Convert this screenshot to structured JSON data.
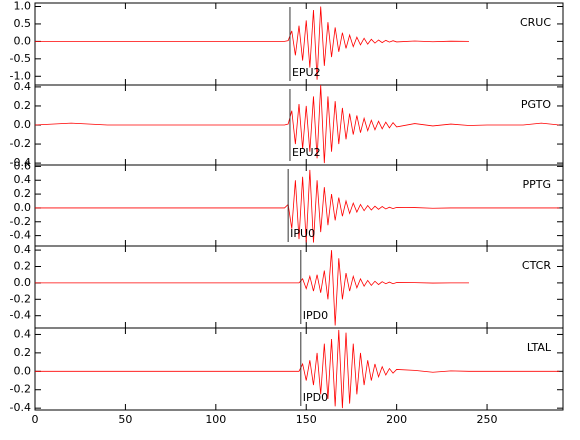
{
  "chart_data": [
    {
      "type": "line",
      "station": "CRUC",
      "phase": {
        "label": "EPU2",
        "x": 141
      },
      "color": "#ff0000",
      "xlim": [
        0,
        292
      ],
      "xticks": [
        0,
        50,
        100,
        150,
        200,
        250
      ],
      "ylim": [
        -1.25,
        1.1
      ],
      "yticks": [
        {
          "value": -1,
          "label": "-1.0"
        },
        -0.5,
        {
          "value": 0,
          "label": "0.0"
        },
        0.5,
        {
          "value": 1,
          "label": "1.0"
        }
      ],
      "x": [
        0,
        20,
        40,
        60,
        80,
        100,
        120,
        130,
        132,
        134,
        136,
        138,
        140,
        142,
        144,
        146,
        148,
        150,
        152,
        154,
        156,
        158,
        160,
        162,
        164,
        166,
        168,
        170,
        172,
        174,
        176,
        178,
        180,
        182,
        184,
        186,
        188,
        190,
        192,
        194,
        196,
        198,
        200,
        210,
        220,
        230,
        240,
        250,
        260,
        270,
        280,
        290
      ],
      "values": [
        0,
        0,
        0,
        0,
        0,
        0,
        0,
        0,
        0,
        0,
        0,
        0,
        0.02,
        0.3,
        -0.4,
        0.45,
        -0.55,
        0.6,
        -0.75,
        0.9,
        -1.1,
        1.0,
        -0.7,
        0.55,
        -0.45,
        0.4,
        -0.3,
        0.25,
        -0.2,
        0.18,
        -0.15,
        0.12,
        -0.1,
        0.09,
        -0.08,
        0.06,
        -0.05,
        0.04,
        -0.035,
        0.03,
        -0.02,
        0.02,
        -0.015,
        0.01,
        -0.01,
        0.005,
        0,
        null,
        null,
        null,
        null,
        null
      ]
    },
    {
      "type": "line",
      "station": "PGTO",
      "phase": {
        "label": "EPU2",
        "x": 141
      },
      "color": "#ff0000",
      "xlim": [
        0,
        292
      ],
      "xticks": [
        0,
        50,
        100,
        150,
        200,
        250
      ],
      "ylim": [
        -0.42,
        0.42
      ],
      "yticks": [
        -0.4,
        -0.2,
        {
          "value": 0,
          "label": "0.0"
        },
        0.2,
        0.4
      ],
      "x": [
        0,
        20,
        40,
        60,
        80,
        100,
        120,
        130,
        132,
        134,
        136,
        138,
        140,
        142,
        144,
        146,
        148,
        150,
        152,
        154,
        156,
        158,
        160,
        162,
        164,
        166,
        168,
        170,
        172,
        174,
        176,
        178,
        180,
        182,
        184,
        186,
        188,
        190,
        192,
        194,
        196,
        198,
        200,
        210,
        220,
        230,
        240,
        250,
        260,
        270,
        280,
        290
      ],
      "values": [
        0,
        0.02,
        0,
        0,
        0,
        0,
        0,
        0,
        0,
        0,
        0,
        0,
        0.01,
        0.15,
        -0.2,
        0.22,
        -0.25,
        0.2,
        -0.28,
        0.3,
        -0.35,
        0.42,
        -0.4,
        0.3,
        -0.28,
        0.25,
        -0.2,
        0.18,
        -0.15,
        0.12,
        -0.1,
        0.1,
        -0.08,
        0.07,
        -0.06,
        0.05,
        -0.05,
        0.04,
        -0.04,
        0.03,
        -0.03,
        0.025,
        -0.02,
        0.015,
        -0.01,
        0.01,
        -0.005,
        0,
        0,
        0,
        0.02,
        0
      ]
    },
    {
      "type": "line",
      "station": "PPTG",
      "phase": {
        "label": "IPU0",
        "x": 140
      },
      "color": "#ff0000",
      "xlim": [
        0,
        292
      ],
      "xticks": [
        0,
        50,
        100,
        150,
        200,
        250
      ],
      "ylim": [
        -0.55,
        0.62
      ],
      "yticks": [
        -0.4,
        -0.2,
        {
          "value": 0,
          "label": "0.0"
        },
        0.2,
        0.4,
        0.6
      ],
      "x": [
        0,
        20,
        40,
        60,
        80,
        100,
        120,
        130,
        132,
        134,
        136,
        138,
        140,
        142,
        144,
        146,
        148,
        150,
        152,
        154,
        156,
        158,
        160,
        162,
        164,
        166,
        168,
        170,
        172,
        174,
        176,
        178,
        180,
        182,
        184,
        186,
        188,
        190,
        192,
        194,
        196,
        198,
        200,
        210,
        220,
        230,
        240,
        250,
        260,
        270,
        280,
        290
      ],
      "values": [
        0,
        0,
        0,
        0,
        0,
        0,
        0,
        0,
        0,
        0,
        0,
        0,
        0.05,
        -0.3,
        0.4,
        -0.45,
        0.45,
        -0.5,
        0.55,
        -0.5,
        0.4,
        -0.35,
        0.3,
        -0.25,
        0.2,
        -0.18,
        0.15,
        -0.12,
        0.1,
        -0.08,
        0.07,
        -0.06,
        0.05,
        -0.04,
        0.035,
        -0.03,
        0.025,
        -0.02,
        0.02,
        -0.015,
        0.01,
        -0.01,
        0.008,
        0.005,
        -0.005,
        0,
        0,
        0,
        0,
        0,
        0,
        0
      ]
    },
    {
      "type": "line",
      "station": "CTCR",
      "phase": {
        "label": "IPD0",
        "x": 147
      },
      "color": "#ff0000",
      "xlim": [
        0,
        292
      ],
      "xticks": [
        0,
        50,
        100,
        150,
        200,
        250
      ],
      "ylim": [
        -0.55,
        0.45
      ],
      "yticks": [
        -0.4,
        -0.2,
        {
          "value": 0,
          "label": "0.0"
        },
        0.2,
        0.4
      ],
      "x": [
        0,
        20,
        40,
        60,
        80,
        100,
        120,
        130,
        132,
        134,
        136,
        138,
        140,
        142,
        144,
        146,
        148,
        150,
        152,
        154,
        156,
        158,
        160,
        162,
        164,
        166,
        168,
        170,
        172,
        174,
        176,
        178,
        180,
        182,
        184,
        186,
        188,
        190,
        192,
        194,
        196,
        198,
        200,
        210,
        220,
        230,
        240,
        250,
        260,
        270,
        280,
        290
      ],
      "values": [
        0,
        0,
        0,
        0,
        0,
        0,
        0,
        0,
        0,
        0,
        0,
        0,
        0,
        0,
        0,
        0,
        0.05,
        -0.07,
        0.08,
        -0.1,
        0.1,
        -0.12,
        0.15,
        -0.2,
        0.4,
        -0.52,
        0.3,
        -0.2,
        0.12,
        -0.1,
        0.08,
        -0.06,
        0.05,
        -0.04,
        0.03,
        -0.03,
        0.02,
        -0.02,
        0.015,
        -0.01,
        0.01,
        -0.01,
        0.005,
        0.003,
        -0.002,
        0,
        0,
        null,
        null,
        null,
        null,
        null
      ]
    },
    {
      "type": "line",
      "station": "LTAL",
      "phase": {
        "label": "IPD0",
        "x": 147
      },
      "color": "#ff0000",
      "xlim": [
        0,
        292
      ],
      "xticks": [
        0,
        50,
        100,
        150,
        200,
        250
      ],
      "ylim": [
        -0.42,
        0.47
      ],
      "yticks": [
        -0.4,
        -0.2,
        {
          "value": 0,
          "label": "0.0"
        },
        0.2,
        0.4
      ],
      "x": [
        0,
        20,
        40,
        60,
        80,
        100,
        120,
        130,
        132,
        134,
        136,
        138,
        140,
        142,
        144,
        146,
        148,
        150,
        152,
        154,
        156,
        158,
        160,
        162,
        164,
        166,
        168,
        170,
        172,
        174,
        176,
        178,
        180,
        182,
        184,
        186,
        188,
        190,
        192,
        194,
        196,
        198,
        200,
        210,
        220,
        230,
        240,
        250,
        260,
        270,
        280,
        290
      ],
      "values": [
        0,
        0,
        0,
        0,
        0,
        0,
        0,
        0,
        0,
        0,
        0,
        0,
        0,
        0,
        0,
        0,
        0.08,
        -0.1,
        0.12,
        -0.15,
        0.2,
        -0.25,
        0.3,
        -0.3,
        0.35,
        -0.38,
        0.45,
        -0.4,
        0.42,
        -0.35,
        0.3,
        -0.25,
        0.2,
        -0.15,
        0.12,
        -0.1,
        0.08,
        -0.06,
        0.05,
        -0.04,
        0.03,
        -0.02,
        0.02,
        0.01,
        -0.01,
        0.005,
        0,
        0,
        0,
        0,
        0,
        0
      ]
    }
  ]
}
